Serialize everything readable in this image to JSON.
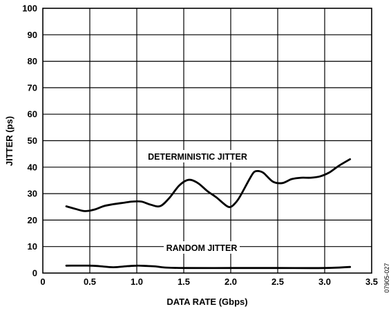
{
  "chart_data": {
    "type": "line",
    "xlabel": "DATA RATE (Gbps)",
    "ylabel": "JITTER (ps)",
    "xlim": [
      0,
      3.5
    ],
    "ylim": [
      0,
      100
    ],
    "xticks": [
      "0",
      "0.5",
      "1.0",
      "1.5",
      "2.0",
      "2.5",
      "3.0",
      "3.5"
    ],
    "yticks": [
      "0",
      "10",
      "20",
      "30",
      "40",
      "50",
      "60",
      "70",
      "80",
      "90",
      "100"
    ],
    "grid": true,
    "legend": "none",
    "series": [
      {
        "name": "DETERMINISTIC JITTER",
        "x": [
          0.25,
          0.35,
          0.45,
          0.55,
          0.65,
          0.75,
          0.85,
          0.95,
          1.05,
          1.15,
          1.25,
          1.35,
          1.45,
          1.55,
          1.65,
          1.75,
          1.85,
          1.95,
          2.0,
          2.05,
          2.1,
          2.2,
          2.25,
          2.3,
          2.35,
          2.45,
          2.55,
          2.65,
          2.75,
          2.85,
          2.95,
          3.05,
          3.15,
          3.27
        ],
        "y": [
          25.2,
          24.2,
          23.4,
          24.0,
          25.3,
          26.0,
          26.5,
          27.0,
          27.0,
          25.8,
          25.3,
          28.5,
          33.0,
          35.2,
          34.0,
          31.0,
          28.5,
          25.5,
          25.0,
          26.5,
          29.0,
          35.5,
          38.2,
          38.5,
          37.8,
          34.5,
          34.0,
          35.5,
          36.0,
          36.0,
          36.5,
          38.0,
          40.5,
          43.0
        ]
      },
      {
        "name": "RANDOM JITTER",
        "x": [
          0.25,
          0.5,
          0.6,
          0.75,
          0.9,
          1.0,
          1.1,
          1.2,
          1.3,
          1.5,
          2.0,
          2.5,
          3.0,
          3.27
        ],
        "y": [
          2.8,
          2.8,
          2.6,
          2.2,
          2.6,
          2.8,
          2.7,
          2.5,
          2.1,
          1.9,
          1.9,
          1.9,
          1.9,
          2.3
        ]
      }
    ],
    "annotations": [
      "DETERMINISTIC JITTER",
      "RANDOM JITTER"
    ],
    "figure_id": "07905-027"
  }
}
